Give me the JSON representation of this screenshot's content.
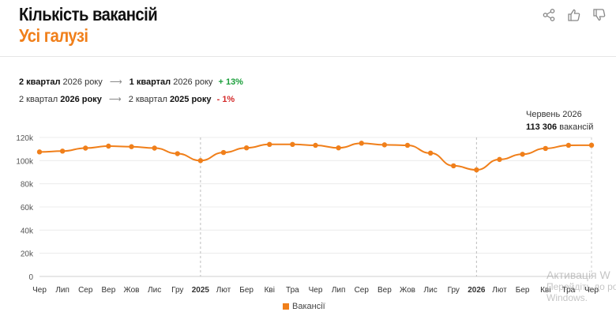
{
  "header": {
    "title": "Кількість вакансій",
    "subtitle": "Усі галузі"
  },
  "actions": {
    "share_icon": "share-icon",
    "like_icon": "thumbs-up-icon",
    "dislike_icon": "thumbs-down-icon"
  },
  "comparisons": [
    {
      "from_bold": "2 квартал",
      "from_rest": "2026 року",
      "to_bold": "1 квартал",
      "to_rest": "2026 року",
      "change": "+ 13%",
      "direction": "up"
    },
    {
      "from_rest": "2 квартал",
      "from_bold": "2026 року",
      "to_rest": "2 квартал",
      "to_bold": "2025 року",
      "change": "- 1%",
      "direction": "down"
    }
  ],
  "tooltip": {
    "label": "Червень 2026",
    "value": "113 306",
    "unit": "вакансій"
  },
  "colors": {
    "accent": "#f07f1a",
    "positive": "#1a9e3a",
    "negative": "#d42a2a"
  },
  "watermark": {
    "line1": "Активація W",
    "line2": "Перейдіть до розд",
    "line3": "Windows."
  },
  "chart_data": {
    "type": "line",
    "categories": [
      "Чер",
      "Лип",
      "Сер",
      "Вер",
      "Жов",
      "Лис",
      "Гру",
      "2025",
      "Лют",
      "Бер",
      "Кві",
      "Тра",
      "Чер",
      "Лип",
      "Сер",
      "Вер",
      "Жов",
      "Лис",
      "Гру",
      "2026",
      "Лют",
      "Бер",
      "Кві",
      "Тра",
      "Чер"
    ],
    "bold_categories": [
      "2025",
      "2026"
    ],
    "series": [
      {
        "name": "Вакансії",
        "values": [
          107500,
          108200,
          110800,
          112500,
          112000,
          110800,
          106000,
          100000,
          107000,
          111000,
          114000,
          114000,
          113200,
          111000,
          115000,
          113600,
          113200,
          106500,
          95500,
          92000,
          101000,
          105500,
          110500,
          113200,
          113306
        ]
      }
    ],
    "yticks": [
      0,
      20000,
      40000,
      60000,
      80000,
      100000,
      120000
    ],
    "ytick_labels": [
      "0",
      "20k",
      "40k",
      "60k",
      "80k",
      "100k",
      "120k"
    ],
    "ylim": [
      0,
      120000
    ],
    "grid": true,
    "legend": "bottom-center",
    "title": "",
    "xlabel": "",
    "ylabel": ""
  }
}
